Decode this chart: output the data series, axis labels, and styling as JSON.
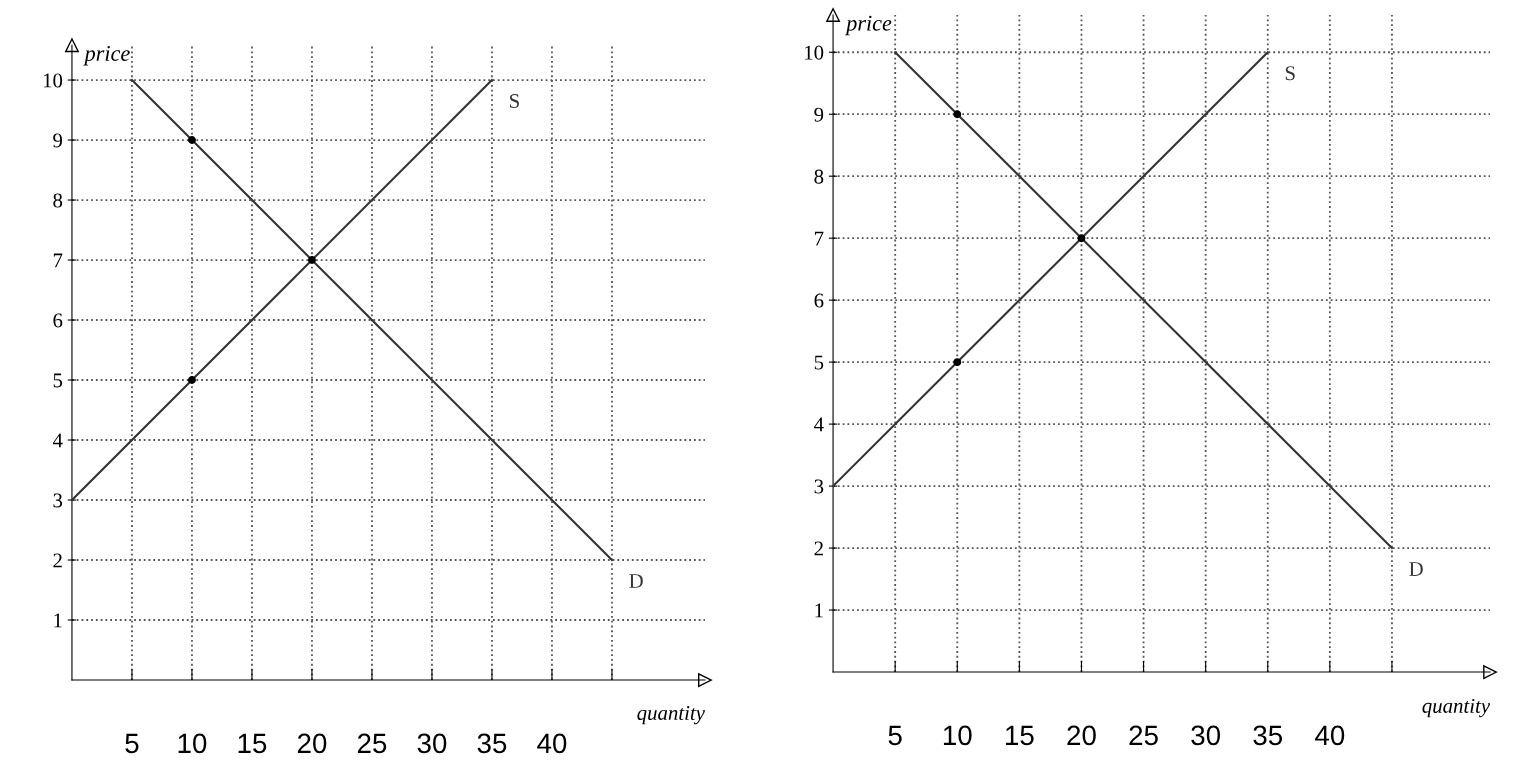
{
  "chart_data": [
    {
      "type": "line",
      "xlabel": "quantity",
      "ylabel": "price",
      "xlim": [
        0,
        52.75
      ],
      "ylim": [
        0,
        10.58
      ],
      "xticks": [
        5,
        10,
        15,
        20,
        25,
        30,
        35,
        40,
        {
          "value": 45,
          "label": null
        }
      ],
      "yticks": [
        1,
        2,
        3,
        4,
        5,
        6,
        7,
        8,
        9,
        10
      ],
      "grid": true,
      "line_style": "solid",
      "series": [
        {
          "name": "S",
          "color": "#333333",
          "x": [
            0,
            35
          ],
          "values": [
            3,
            10
          ]
        },
        {
          "name": "D",
          "color": "#333333",
          "x": [
            5,
            45
          ],
          "values": [
            10,
            2
          ]
        },
        {
          "type": "scatter",
          "color": "#000000",
          "x": [
            10,
            10,
            20
          ],
          "values": [
            9,
            5,
            7
          ]
        }
      ]
    },
    {
      "type": "line",
      "xlabel": "quantity",
      "ylabel": "price",
      "xlim": [
        0,
        52.9
      ],
      "ylim": [
        0,
        10.6
      ],
      "xticks": [
        5,
        10,
        15,
        20,
        25,
        30,
        35,
        40,
        {
          "value": 45,
          "label": null
        }
      ],
      "yticks": [
        1,
        2,
        3,
        4,
        5,
        6,
        7,
        8,
        9,
        10
      ],
      "grid": true,
      "line_style": "solid",
      "series": [
        {
          "name": "S",
          "color": "#333333",
          "x": [
            0,
            35
          ],
          "values": [
            3,
            10
          ]
        },
        {
          "name": "D",
          "color": "#333333",
          "x": [
            5,
            45
          ],
          "values": [
            10,
            2
          ]
        },
        {
          "type": "scatter",
          "color": "#000000",
          "x": [
            10,
            10,
            20
          ],
          "values": [
            9,
            5,
            7
          ]
        }
      ]
    }
  ]
}
